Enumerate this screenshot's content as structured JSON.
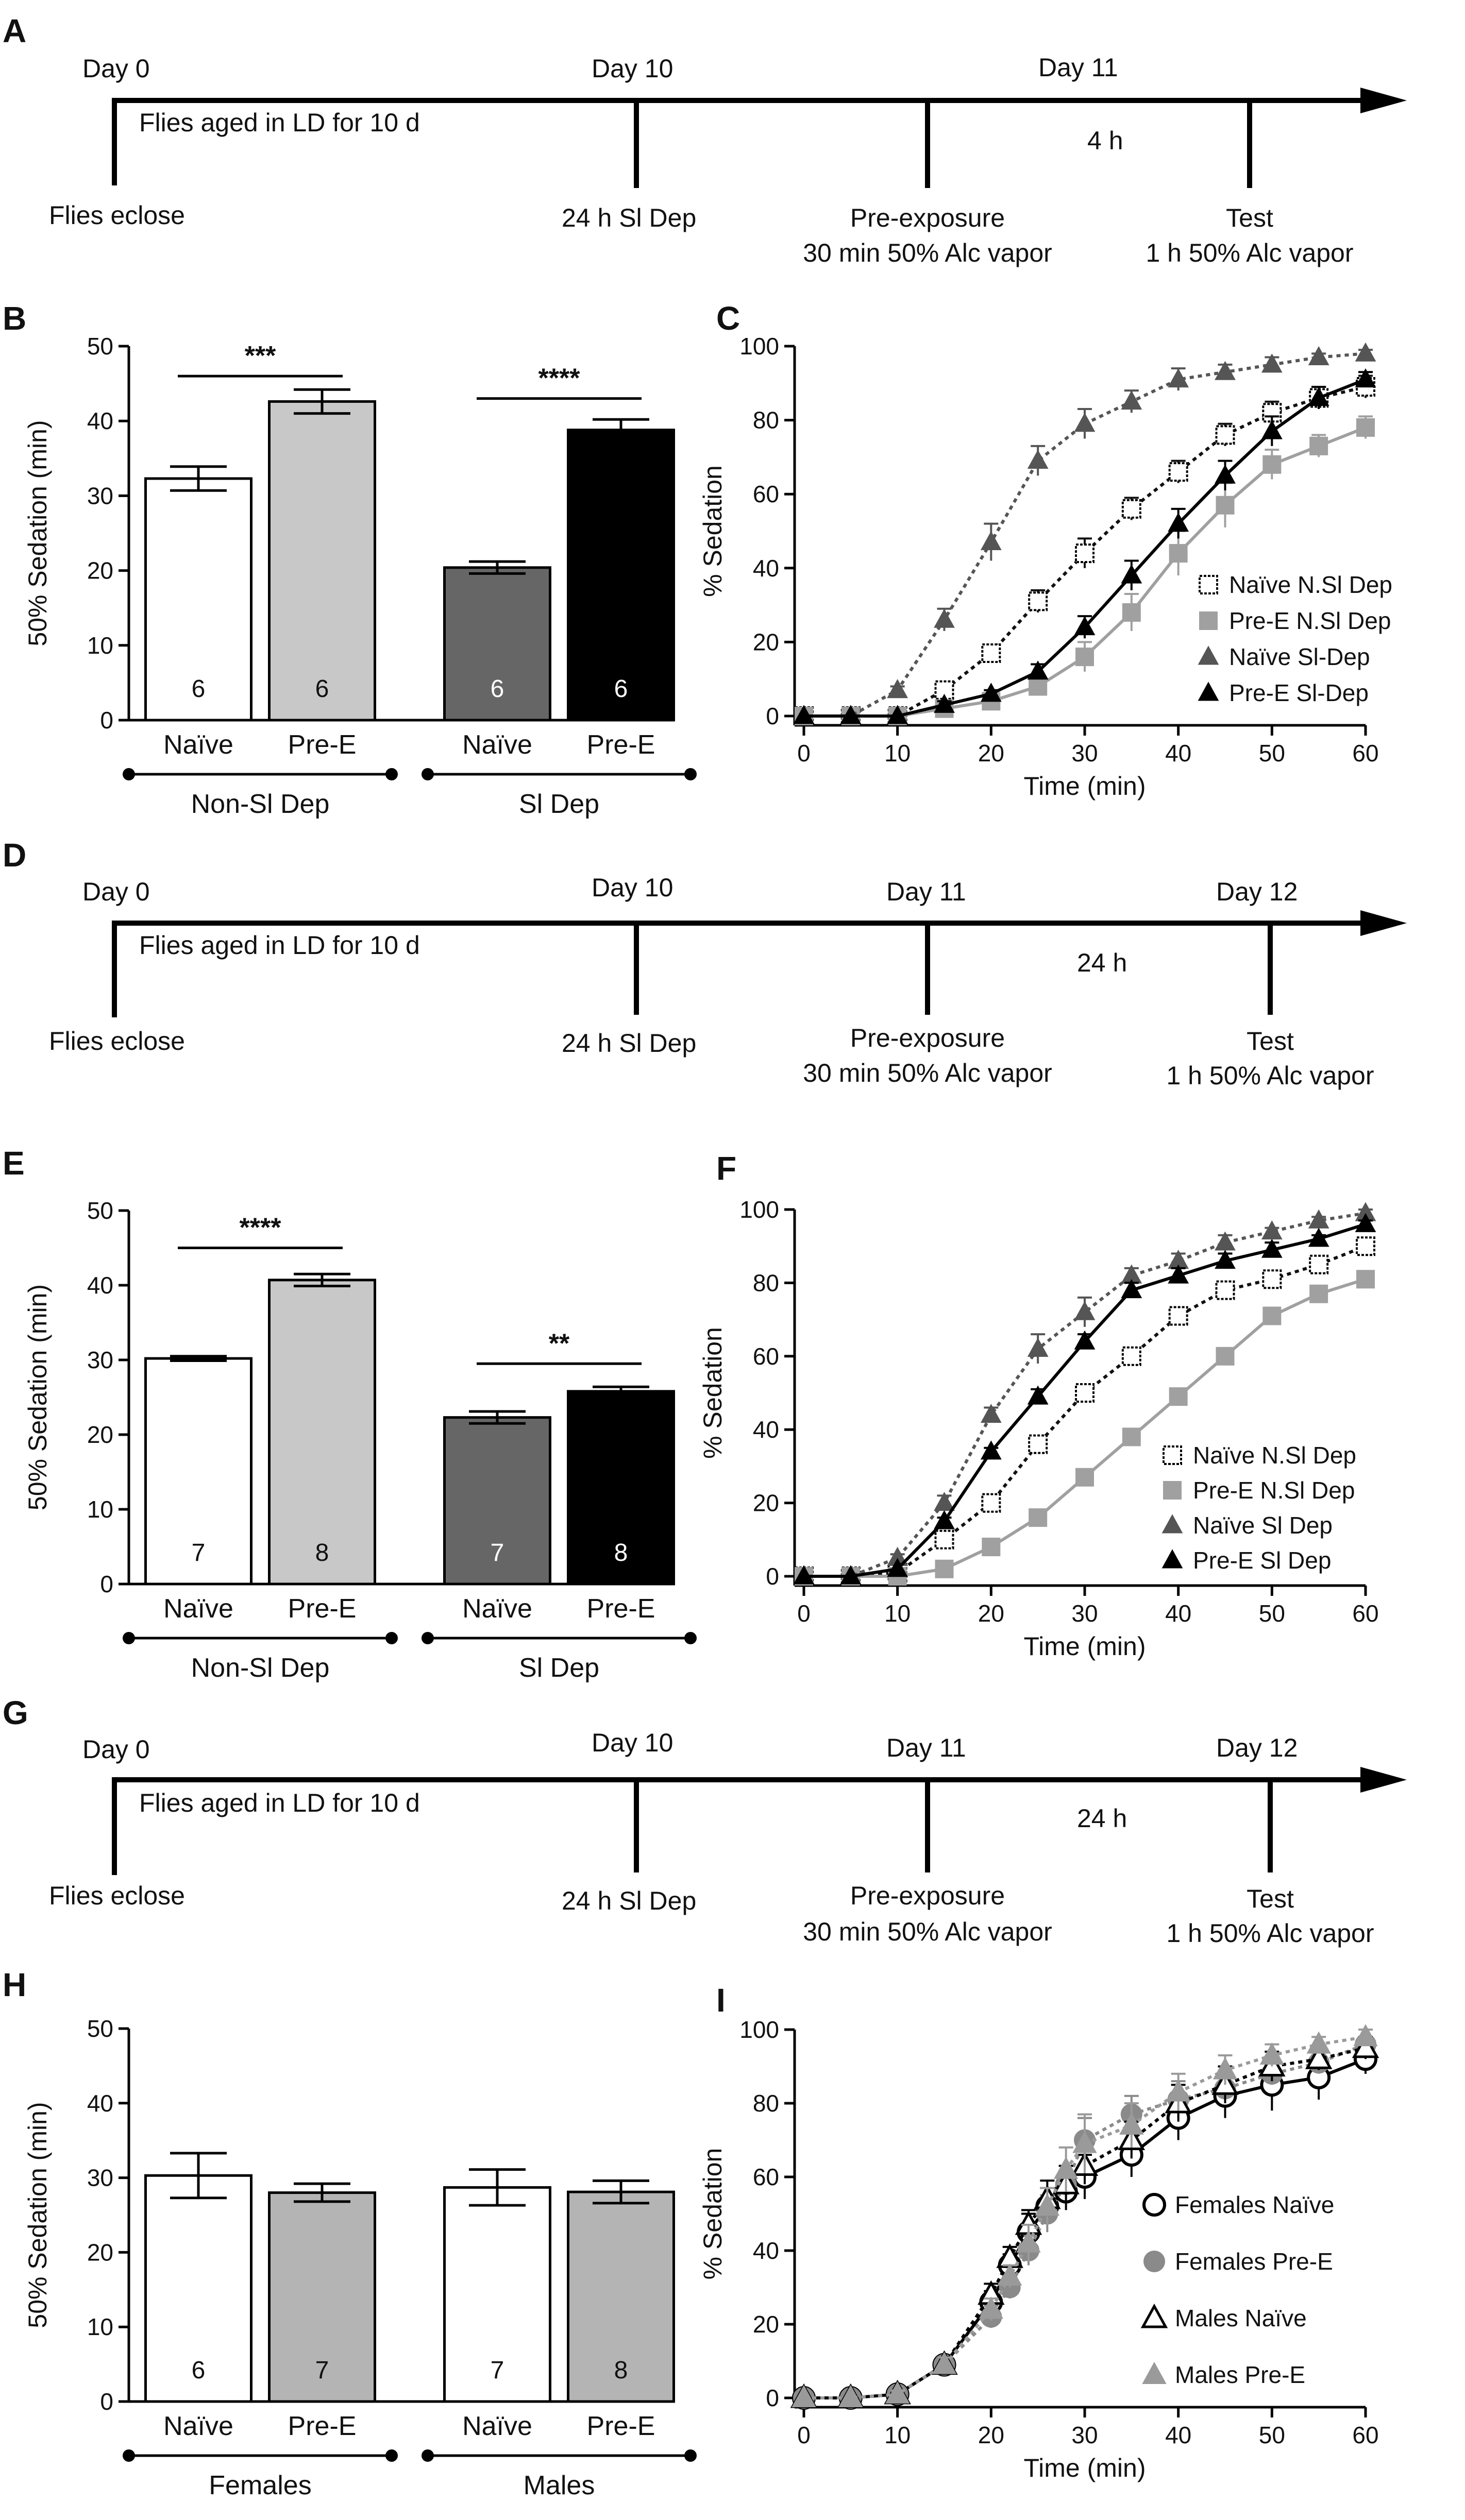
{
  "colors": {
    "naive_nsl": "#ffffff",
    "pre_nsl": "#c8c8c8",
    "naive_sl": "#666666",
    "pre_sl": "#000000",
    "light_gray_line": "#a0a0a0",
    "dark_gray_line": "#555555",
    "females_pre": "#8a8a8a",
    "males_pre": "#9a9a9a"
  },
  "panels": {
    "A": {
      "letter": "A",
      "day0": "Day 0",
      "dayX": "Day 10",
      "dayY": "Day 11",
      "dayZ": "",
      "aged": "Flies aged in LD for 10 d",
      "interval": "4 h",
      "eclose": "Flies eclose",
      "sldep": "24 h Sl Dep",
      "pre1": "Pre-exposure",
      "pre2": "30 min 50% Alc vapor",
      "test1": "Test",
      "test2": "1 h 50% Alc vapor"
    },
    "D": {
      "letter": "D",
      "day0": "Day 0",
      "dayX": "Day 10",
      "dayY": "Day 11",
      "dayZ": "Day 12",
      "aged": "Flies aged in LD for 10 d",
      "interval": "24 h",
      "eclose": "Flies eclose",
      "sldep": "24 h Sl Dep",
      "pre1": "Pre-exposure",
      "pre2": "30 min 50% Alc vapor",
      "test1": "Test",
      "test2": "1 h 50% Alc vapor"
    },
    "G": {
      "letter": "G",
      "day0": "Day 0",
      "dayX": "Day 10",
      "dayY": "Day 11",
      "dayZ": "Day 12",
      "aged": "Flies aged in LD for 10 d",
      "interval": "24 h",
      "eclose": "Flies eclose",
      "sldep": "24 h Sl Dep",
      "pre1": "Pre-exposure",
      "pre2": "30 min 50% Alc vapor",
      "test1": "Test",
      "test2": "1 h 50% Alc vapor"
    }
  },
  "chart_data": [
    {
      "id": "B",
      "type": "bar",
      "letter": "B",
      "ylabel": "50% Sedation (min)",
      "ylim": [
        0,
        50
      ],
      "yticks": [
        0,
        10,
        20,
        30,
        40,
        50
      ],
      "categories": [
        "Naïve",
        "Pre-E",
        "Naïve",
        "Pre-E"
      ],
      "values": [
        32.3,
        42.6,
        20.4,
        38.8
      ],
      "errors": [
        1.6,
        1.6,
        0.8,
        1.4
      ],
      "n": [
        "6",
        "6",
        "6",
        "6"
      ],
      "n_color": [
        "#111111",
        "#111111",
        "#ffffff",
        "#ffffff"
      ],
      "fills": [
        "#ffffff",
        "#c8c8c8",
        "#666666",
        "#000000"
      ],
      "groups": [
        "Non-Sl Dep",
        "Sl Dep"
      ],
      "significance": [
        {
          "text": "***",
          "from": 0,
          "to": 1,
          "y": 46
        },
        {
          "text": "****",
          "from": 2,
          "to": 3,
          "y": 43
        }
      ]
    },
    {
      "id": "E",
      "type": "bar",
      "letter": "E",
      "ylabel": "50% Sedation (min)",
      "ylim": [
        0,
        50
      ],
      "yticks": [
        0,
        10,
        20,
        30,
        40,
        50
      ],
      "categories": [
        "Naïve",
        "Pre-E",
        "Naïve",
        "Pre-E"
      ],
      "values": [
        30.2,
        40.7,
        22.3,
        25.8
      ],
      "errors": [
        0.3,
        0.8,
        0.8,
        0.6
      ],
      "n": [
        "7",
        "8",
        "7",
        "8"
      ],
      "n_color": [
        "#111111",
        "#111111",
        "#ffffff",
        "#ffffff"
      ],
      "fills": [
        "#ffffff",
        "#c8c8c8",
        "#666666",
        "#000000"
      ],
      "groups": [
        "Non-Sl Dep",
        "Sl Dep"
      ],
      "significance": [
        {
          "text": "****",
          "from": 0,
          "to": 1,
          "y": 45
        },
        {
          "text": "**",
          "from": 2,
          "to": 3,
          "y": 29.5
        }
      ]
    },
    {
      "id": "H",
      "type": "bar",
      "letter": "H",
      "ylabel": "50% Sedation (min)",
      "ylim": [
        0,
        50
      ],
      "yticks": [
        0,
        10,
        20,
        30,
        40,
        50
      ],
      "categories": [
        "Naïve",
        "Pre-E",
        "Naïve",
        "Pre-E"
      ],
      "values": [
        30.3,
        28.0,
        28.7,
        28.1
      ],
      "errors": [
        3.0,
        1.2,
        2.4,
        1.5
      ],
      "n": [
        "6",
        "7",
        "7",
        "8"
      ],
      "n_color": [
        "#111111",
        "#111111",
        "#111111",
        "#111111"
      ],
      "fills": [
        "#ffffff",
        "#b4b4b4",
        "#ffffff",
        "#b4b4b4"
      ],
      "groups": [
        "Females",
        "Males"
      ],
      "significance": []
    },
    {
      "id": "C",
      "type": "line",
      "letter": "C",
      "xlabel": "Time (min)",
      "ylabel": "% Sedation",
      "xlim": [
        0,
        60
      ],
      "ylim": [
        0,
        100
      ],
      "xticks": [
        0,
        10,
        20,
        30,
        40,
        50,
        60
      ],
      "yticks": [
        0,
        20,
        40,
        60,
        80,
        100
      ],
      "x": [
        0,
        5,
        10,
        15,
        20,
        25,
        30,
        35,
        40,
        45,
        50,
        55,
        60
      ],
      "series": [
        {
          "name": "Naïve N.Sl Dep",
          "marker": "square-open",
          "color": "#111111",
          "dash": true,
          "values": [
            0,
            0,
            0,
            7,
            17,
            31,
            44,
            56,
            66,
            76,
            82,
            86,
            89
          ],
          "errors": [
            0,
            0,
            0,
            2,
            2,
            3,
            4,
            3,
            3,
            3,
            3,
            3,
            3
          ]
        },
        {
          "name": "Pre-E N.Sl Dep",
          "marker": "square",
          "color": "#a0a0a0",
          "dash": false,
          "values": [
            0,
            0,
            0,
            2,
            4,
            8,
            16,
            28,
            44,
            57,
            68,
            73,
            78
          ],
          "errors": [
            0,
            0,
            0,
            1,
            1,
            2,
            4,
            5,
            6,
            6,
            4,
            3,
            3
          ]
        },
        {
          "name": "Naïve Sl-Dep",
          "marker": "triangle",
          "color": "#555555",
          "dash": true,
          "values": [
            0,
            0,
            7,
            26,
            47,
            69,
            79,
            85,
            91,
            93,
            95,
            97,
            98
          ],
          "errors": [
            0,
            0,
            1,
            3,
            5,
            4,
            4,
            3,
            3,
            2,
            2,
            1,
            1
          ]
        },
        {
          "name": "Pre-E Sl-Dep",
          "marker": "triangle",
          "color": "#000000",
          "dash": false,
          "values": [
            0,
            0,
            0,
            3,
            6,
            12,
            24,
            38,
            52,
            65,
            77,
            86,
            91
          ],
          "errors": [
            0,
            0,
            0,
            1,
            1,
            2,
            3,
            4,
            4,
            4,
            4,
            3,
            2
          ]
        }
      ]
    },
    {
      "id": "F",
      "type": "line",
      "letter": "F",
      "xlabel": "Time (min)",
      "ylabel": "% Sedation",
      "xlim": [
        0,
        60
      ],
      "ylim": [
        0,
        100
      ],
      "xticks": [
        0,
        10,
        20,
        30,
        40,
        50,
        60
      ],
      "yticks": [
        0,
        20,
        40,
        60,
        80,
        100
      ],
      "x": [
        0,
        5,
        10,
        15,
        20,
        25,
        30,
        35,
        40,
        45,
        50,
        55,
        60
      ],
      "series": [
        {
          "name": "Naïve N.Sl Dep",
          "marker": "square-open",
          "color": "#111111",
          "dash": true,
          "values": [
            0,
            0,
            1,
            10,
            20,
            36,
            50,
            60,
            71,
            78,
            81,
            85,
            90
          ],
          "errors": [
            0,
            0,
            0,
            1,
            1,
            1,
            1,
            1,
            1,
            1,
            1,
            1,
            1
          ]
        },
        {
          "name": "Pre-E N.Sl Dep",
          "marker": "square",
          "color": "#a0a0a0",
          "dash": false,
          "values": [
            0,
            0,
            0,
            2,
            8,
            16,
            27,
            38,
            49,
            60,
            71,
            77,
            81
          ],
          "errors": [
            0,
            0,
            0,
            0,
            0,
            1,
            1,
            1,
            1,
            1,
            1,
            1,
            1
          ]
        },
        {
          "name": "Naïve Sl Dep",
          "marker": "triangle",
          "color": "#555555",
          "dash": true,
          "values": [
            0,
            0,
            5,
            20,
            44,
            62,
            72,
            82,
            86,
            91,
            94,
            97,
            99
          ],
          "errors": [
            0,
            0,
            1,
            2,
            2,
            4,
            4,
            2,
            2,
            2,
            1,
            1,
            1
          ]
        },
        {
          "name": "Pre-E Sl Dep",
          "marker": "triangle",
          "color": "#000000",
          "dash": false,
          "values": [
            0,
            0,
            2,
            15,
            34,
            49,
            64,
            78,
            82,
            86,
            89,
            92,
            96
          ],
          "errors": [
            0,
            0,
            0,
            1,
            1,
            2,
            2,
            2,
            2,
            2,
            2,
            1,
            1
          ]
        }
      ]
    },
    {
      "id": "I",
      "type": "line",
      "letter": "I",
      "xlabel": "Time (min)",
      "ylabel": "% Sedation",
      "xlim": [
        0,
        60
      ],
      "ylim": [
        0,
        100
      ],
      "xticks": [
        0,
        10,
        20,
        30,
        40,
        50,
        60
      ],
      "yticks": [
        0,
        20,
        40,
        60,
        80,
        100
      ],
      "x": [
        0,
        5,
        10,
        15,
        20,
        22,
        24,
        26,
        28,
        30,
        35,
        40,
        45,
        50,
        55,
        60
      ],
      "series": [
        {
          "name": "Females Naïve",
          "marker": "circle-open",
          "color": "#000000",
          "dash": false,
          "values": [
            0,
            0,
            1,
            9,
            26,
            36,
            45,
            52,
            56,
            60,
            66,
            76,
            82,
            85,
            87,
            92
          ],
          "errors": [
            0,
            0,
            1,
            2,
            3,
            3,
            5,
            5,
            5,
            6,
            6,
            6,
            6,
            7,
            6,
            4
          ]
        },
        {
          "name": "Females Pre-E",
          "marker": "circle",
          "color": "#8a8a8a",
          "dash": true,
          "values": [
            0,
            0,
            1,
            9,
            22,
            30,
            40,
            50,
            58,
            70,
            77,
            81,
            84,
            88,
            91,
            96
          ],
          "errors": [
            0,
            0,
            1,
            2,
            3,
            3,
            4,
            5,
            5,
            6,
            5,
            5,
            4,
            3,
            3,
            2
          ]
        },
        {
          "name": "Males Naïve",
          "marker": "triangle-open",
          "color": "#000000",
          "dash": true,
          "values": [
            0,
            0,
            1,
            9,
            28,
            38,
            47,
            54,
            58,
            63,
            70,
            80,
            85,
            90,
            92,
            95
          ],
          "errors": [
            0,
            0,
            1,
            2,
            3,
            3,
            4,
            5,
            5,
            5,
            5,
            5,
            5,
            4,
            3,
            3
          ]
        },
        {
          "name": "Males Pre-E",
          "marker": "triangle",
          "color": "#9a9a9a",
          "dash": true,
          "values": [
            0,
            0,
            1,
            9,
            24,
            33,
            42,
            52,
            62,
            69,
            74,
            83,
            89,
            93,
            96,
            98
          ],
          "errors": [
            0,
            0,
            1,
            2,
            3,
            3,
            5,
            5,
            6,
            8,
            6,
            5,
            4,
            3,
            2,
            2
          ]
        }
      ]
    }
  ]
}
